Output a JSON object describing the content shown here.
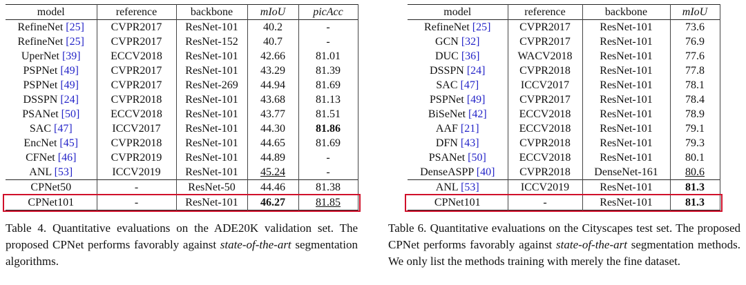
{
  "tables": [
    {
      "columns": [
        {
          "text": "model"
        },
        {
          "text": "reference"
        },
        {
          "text": "backbone"
        },
        {
          "text": "mIoU",
          "italic": true
        },
        {
          "text": "picAcc",
          "italic": true
        }
      ],
      "groups": [
        [
          [
            {
              "text": "RefineNet",
              "cite": "[25]"
            },
            "CVPR2017",
            "ResNet-101",
            "40.2",
            "-"
          ],
          [
            {
              "text": "RefineNet",
              "cite": "[25]"
            },
            "CVPR2017",
            "ResNet-152",
            "40.7",
            "-"
          ],
          [
            {
              "text": "UperNet",
              "cite": "[39]"
            },
            "ECCV2018",
            "ResNet-101",
            "42.66",
            "81.01"
          ],
          [
            {
              "text": "PSPNet",
              "cite": "[49]"
            },
            "CVPR2017",
            "ResNet-101",
            "43.29",
            "81.39"
          ],
          [
            {
              "text": "PSPNet",
              "cite": "[49]"
            },
            "CVPR2017",
            "ResNet-269",
            "44.94",
            "81.69"
          ],
          [
            {
              "text": "DSSPN",
              "cite": "[24]"
            },
            "CVPR2018",
            "ResNet-101",
            "43.68",
            "81.13"
          ],
          [
            {
              "text": "PSANet",
              "cite": "[50]"
            },
            "ECCV2018",
            "ResNet-101",
            "43.77",
            "81.51"
          ],
          [
            {
              "text": "SAC",
              "cite": "[47]"
            },
            "ICCV2017",
            "ResNet-101",
            "44.30",
            {
              "text": "81.86",
              "bold": true
            }
          ],
          [
            {
              "text": "EncNet",
              "cite": "[45]"
            },
            "CVPR2018",
            "ResNet-101",
            "44.65",
            "81.69"
          ],
          [
            {
              "text": "CFNet",
              "cite": "[46]"
            },
            "CVPR2019",
            "ResNet-101",
            "44.89",
            "-"
          ],
          [
            {
              "text": "ANL",
              "cite": "[53]"
            },
            "ICCV2019",
            "ResNet-101",
            {
              "text": "45.24",
              "underline": true
            },
            "-"
          ]
        ],
        [
          [
            "CPNet50",
            "-",
            "ResNet-50",
            "44.46",
            "81.38"
          ]
        ],
        [
          [
            "CPNet101",
            "-",
            "ResNet-101",
            {
              "text": "46.27",
              "bold": true
            },
            {
              "text": "81.85",
              "underline": true
            }
          ]
        ]
      ],
      "caption": [
        {
          "text": "Table 4. Quantitative evaluations on the ADE20K validation set. The proposed CPNet performs favorably against "
        },
        {
          "text": "state-of-the-art",
          "italic": true
        },
        {
          "text": " segmentation algorithms."
        }
      ]
    },
    {
      "columns": [
        {
          "text": "model"
        },
        {
          "text": "reference"
        },
        {
          "text": "backbone"
        },
        {
          "text": "mIoU",
          "italic": true
        }
      ],
      "groups": [
        [
          [
            {
              "text": "RefineNet",
              "cite": "[25]"
            },
            "CVPR2017",
            "ResNet-101",
            "73.6"
          ],
          [
            {
              "text": "GCN",
              "cite": "[32]"
            },
            "CVPR2017",
            "ResNet-101",
            "76.9"
          ],
          [
            {
              "text": "DUC",
              "cite": "[36]"
            },
            "WACV2018",
            "ResNet-101",
            "77.6"
          ],
          [
            {
              "text": "DSSPN",
              "cite": "[24]"
            },
            "CVPR2018",
            "ResNet-101",
            "77.8"
          ],
          [
            {
              "text": "SAC",
              "cite": "[47]"
            },
            "ICCV2017",
            "ResNet-101",
            "78.1"
          ],
          [
            {
              "text": "PSPNet",
              "cite": "[49]"
            },
            "CVPR2017",
            "ResNet-101",
            "78.4"
          ],
          [
            {
              "text": "BiSeNet",
              "cite": "[42]"
            },
            "ECCV2018",
            "ResNet-101",
            "78.9"
          ],
          [
            {
              "text": "AAF",
              "cite": "[21]"
            },
            "ECCV2018",
            "ResNet-101",
            "79.1"
          ],
          [
            {
              "text": "DFN",
              "cite": "[43]"
            },
            "CVPR2018",
            "ResNet-101",
            "79.3"
          ],
          [
            {
              "text": "PSANet",
              "cite": "[50]"
            },
            "ECCV2018",
            "ResNet-101",
            "80.1"
          ],
          [
            {
              "text": "DenseASPP",
              "cite": "[40]"
            },
            "CVPR2018",
            "DenseNet-161",
            {
              "text": "80.6",
              "underline": true
            }
          ]
        ],
        [
          [
            {
              "text": "ANL",
              "cite": "[53]"
            },
            "ICCV2019",
            "ResNet-101",
            {
              "text": "81.3",
              "bold": true
            }
          ]
        ],
        [
          [
            "CPNet101",
            "-",
            "ResNet-101",
            {
              "text": "81.3",
              "bold": true
            }
          ]
        ]
      ],
      "caption": [
        {
          "text": "Table 6.  Quantitative evaluations on the Cityscapes test set. The proposed CPNet performs favorably against "
        },
        {
          "text": "state-of-the-art",
          "italic": true
        },
        {
          "text": " segmentation methods. We only list the methods training with merely the fine dataset."
        }
      ]
    }
  ]
}
